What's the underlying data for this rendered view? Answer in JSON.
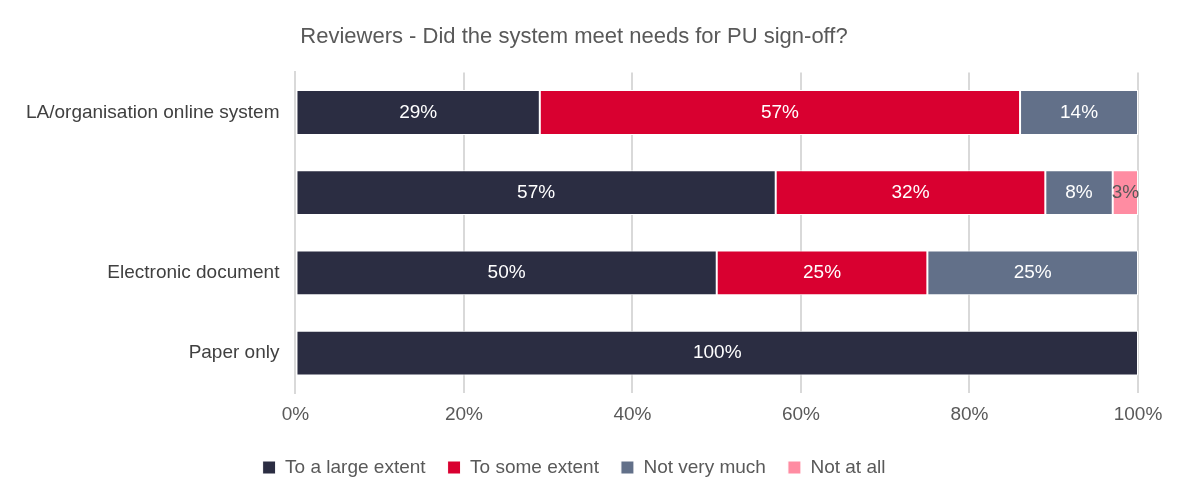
{
  "chart_data": {
    "type": "bar",
    "orientation": "horizontal",
    "stacked": true,
    "title": "Reviewers - Did the system meet needs for PU sign-off?",
    "categories": [
      "LA/organisation online system",
      null,
      "Electronic document",
      "Paper only"
    ],
    "series": [
      {
        "name": "To a large extent",
        "color": "#2b2d42",
        "values": [
          29,
          57,
          50,
          100
        ],
        "value_labels": [
          "29%",
          "57%",
          "50%",
          "100%"
        ]
      },
      {
        "name": "To some extent",
        "color": "#d90030",
        "values": [
          57,
          32,
          25,
          null
        ],
        "value_labels": [
          "57%",
          "32%",
          "25%",
          null
        ]
      },
      {
        "name": "Not very much",
        "color": "#627089",
        "values": [
          14,
          8,
          25,
          null
        ],
        "value_labels": [
          "14%",
          "8%",
          "25%",
          null
        ]
      },
      {
        "name": "Not at all",
        "color": "#ff8ca2",
        "values": [
          null,
          3,
          null,
          null
        ],
        "value_labels": [
          null,
          "3%",
          null,
          null
        ]
      }
    ],
    "xlim": [
      0,
      100
    ],
    "xticks": [
      {
        "value": 0,
        "label": "0%"
      },
      {
        "value": 20,
        "label": "20%"
      },
      {
        "value": 40,
        "label": "40%"
      },
      {
        "value": 60,
        "label": "60%"
      },
      {
        "value": 80,
        "label": "80%"
      },
      {
        "value": 100,
        "label": "100%"
      }
    ],
    "grid": "x",
    "legend": "bottom"
  }
}
